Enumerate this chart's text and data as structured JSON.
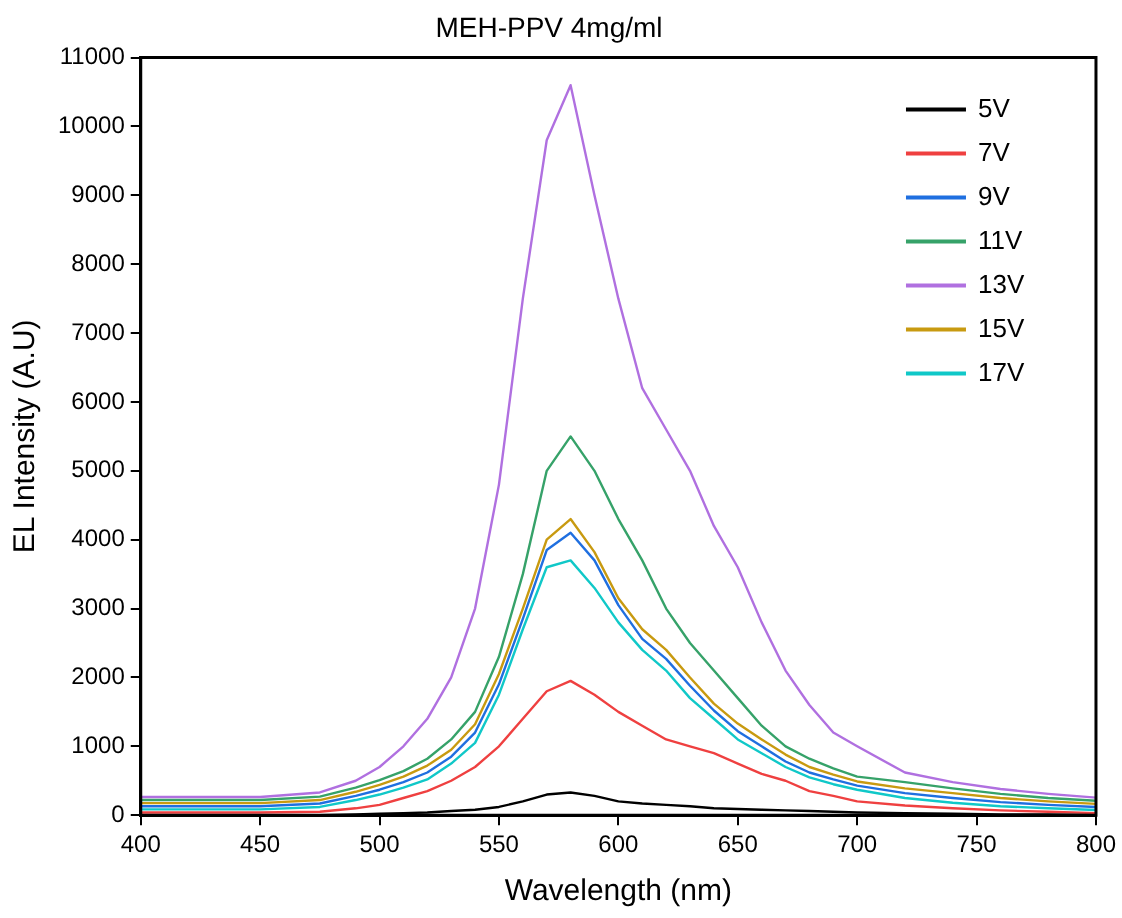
{
  "chart_data": {
    "type": "line",
    "title": "MEH-PPV 4mg/ml",
    "xlabel": "Wavelength (nm)",
    "ylabel": "EL Intensity (A.U)",
    "x": [
      400,
      425,
      450,
      475,
      490,
      500,
      510,
      520,
      530,
      540,
      550,
      560,
      570,
      580,
      590,
      600,
      610,
      620,
      630,
      640,
      650,
      660,
      670,
      680,
      690,
      700,
      720,
      740,
      760,
      780,
      800
    ],
    "xlim": [
      400,
      800
    ],
    "xticks": [
      400,
      450,
      500,
      550,
      600,
      650,
      700,
      750,
      800
    ],
    "ylim": [
      0,
      11000
    ],
    "yticks": [
      0,
      1000,
      2000,
      3000,
      4000,
      5000,
      6000,
      7000,
      8000,
      9000,
      10000,
      11000
    ],
    "grid": false,
    "legend": "top right",
    "marker": "none",
    "line_style": "solid",
    "series": [
      {
        "name": "5V",
        "color": "#000000",
        "values": [
          0,
          0,
          0,
          0,
          10,
          20,
          30,
          40,
          60,
          80,
          120,
          200,
          300,
          330,
          280,
          200,
          170,
          150,
          130,
          100,
          90,
          80,
          70,
          60,
          50,
          40,
          30,
          20,
          10,
          10,
          0
        ]
      },
      {
        "name": "7V",
        "color": "#ef4040",
        "values": [
          40,
          40,
          40,
          50,
          100,
          150,
          250,
          350,
          500,
          700,
          1000,
          1400,
          1800,
          1950,
          1750,
          1500,
          1300,
          1100,
          1000,
          900,
          750,
          600,
          500,
          350,
          280,
          200,
          140,
          100,
          70,
          50,
          30
        ]
      },
      {
        "name": "9V",
        "color": "#1f6fe0",
        "values": [
          130,
          130,
          130,
          170,
          280,
          370,
          480,
          620,
          850,
          1200,
          1900,
          2850,
          3850,
          4100,
          3700,
          3050,
          2560,
          2270,
          1880,
          1520,
          1220,
          1000,
          780,
          620,
          520,
          430,
          320,
          250,
          190,
          150,
          120
        ]
      },
      {
        "name": "11V",
        "color": "#36a269",
        "values": [
          220,
          220,
          220,
          270,
          400,
          510,
          640,
          820,
          1100,
          1500,
          2300,
          3500,
          5000,
          5500,
          5000,
          4300,
          3700,
          3000,
          2500,
          2100,
          1700,
          1300,
          1000,
          820,
          680,
          560,
          480,
          390,
          310,
          250,
          210
        ]
      },
      {
        "name": "13V",
        "color": "#b070e0",
        "values": [
          265,
          265,
          265,
          330,
          500,
          700,
          1000,
          1400,
          2000,
          3000,
          4800,
          7500,
          9800,
          10600,
          9000,
          7500,
          6200,
          5600,
          5000,
          4200,
          3600,
          2800,
          2100,
          1600,
          1200,
          1000,
          620,
          480,
          380,
          310,
          255
        ]
      },
      {
        "name": "15V",
        "color": "#c89a10",
        "values": [
          175,
          175,
          175,
          220,
          340,
          440,
          560,
          720,
          950,
          1320,
          2050,
          3000,
          4000,
          4300,
          3820,
          3150,
          2700,
          2400,
          2000,
          1620,
          1330,
          1100,
          880,
          700,
          590,
          490,
          390,
          320,
          250,
          200,
          165
        ]
      },
      {
        "name": "17V",
        "color": "#10c8c8",
        "values": [
          85,
          85,
          85,
          120,
          220,
          300,
          400,
          520,
          750,
          1050,
          1750,
          2700,
          3600,
          3700,
          3300,
          2800,
          2400,
          2100,
          1700,
          1400,
          1100,
          900,
          700,
          550,
          450,
          370,
          250,
          180,
          130,
          100,
          75
        ]
      }
    ]
  }
}
